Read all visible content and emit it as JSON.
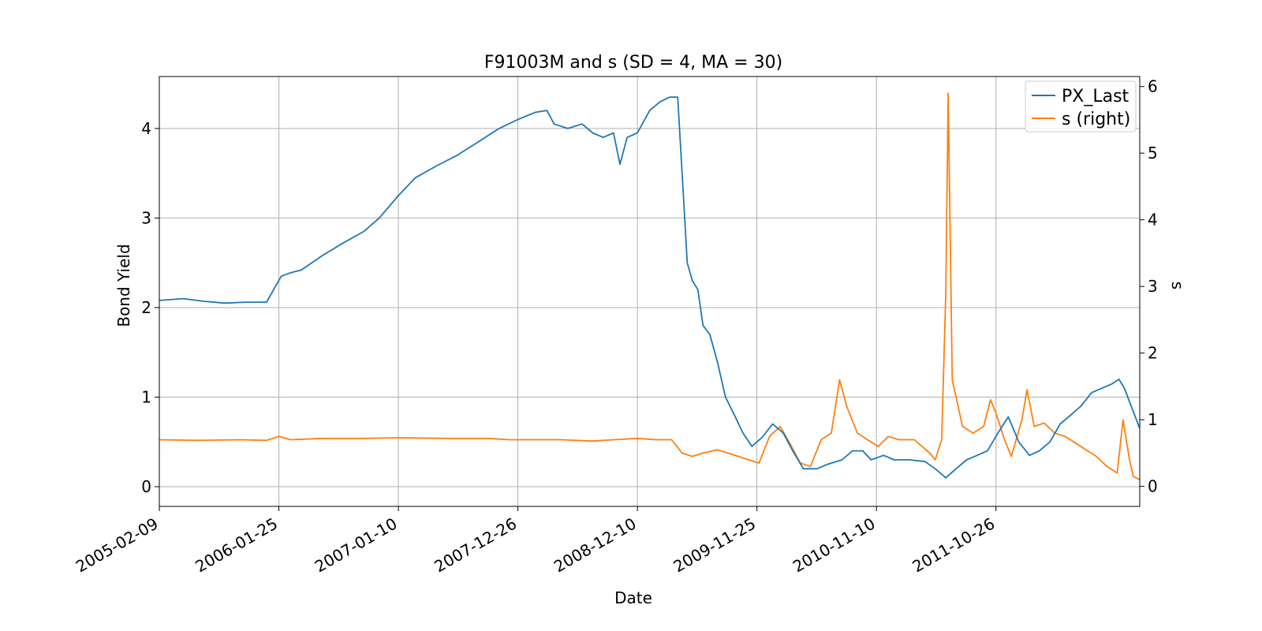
{
  "chart_data": {
    "type": "line",
    "title": "F91003M and s (SD = 4, MA = 30)",
    "xlabel": "Date",
    "ylabel_left": "Bond Yield",
    "ylabel_right": "s",
    "x_ticks": [
      "2005-02-09",
      "2006-01-25",
      "2007-01-10",
      "2007-12-26",
      "2008-12-10",
      "2009-11-25",
      "2010-11-10",
      "2011-10-26"
    ],
    "xlim": [
      "2005-02-09",
      "2012-12-20"
    ],
    "ylim_left": [
      -0.22,
      4.58
    ],
    "ylim_right": [
      -0.3,
      6.15
    ],
    "y_ticks_left": [
      0,
      1,
      2,
      3,
      4
    ],
    "y_ticks_right": [
      0,
      1,
      2,
      3,
      4,
      5,
      6
    ],
    "grid": true,
    "legend_position": "top-right",
    "series": [
      {
        "name": "PX_Last",
        "axis": "left",
        "color": "#1f77b4",
        "points": [
          [
            "2005-02-09",
            2.08
          ],
          [
            "2005-04-20",
            2.1
          ],
          [
            "2005-06-20",
            2.07
          ],
          [
            "2005-08-20",
            2.05
          ],
          [
            "2005-10-20",
            2.06
          ],
          [
            "2005-12-20",
            2.06
          ],
          [
            "2006-01-10",
            2.2
          ],
          [
            "2006-02-01",
            2.35
          ],
          [
            "2006-03-01",
            2.39
          ],
          [
            "2006-04-01",
            2.42
          ],
          [
            "2006-06-01",
            2.58
          ],
          [
            "2006-08-01",
            2.72
          ],
          [
            "2006-10-01",
            2.85
          ],
          [
            "2006-11-15",
            3.0
          ],
          [
            "2007-01-10",
            3.25
          ],
          [
            "2007-03-01",
            3.45
          ],
          [
            "2007-05-01",
            3.58
          ],
          [
            "2007-07-01",
            3.7
          ],
          [
            "2007-09-01",
            3.85
          ],
          [
            "2007-11-01",
            4.0
          ],
          [
            "2007-12-26",
            4.1
          ],
          [
            "2008-02-15",
            4.18
          ],
          [
            "2008-03-20",
            4.2
          ],
          [
            "2008-04-10",
            4.05
          ],
          [
            "2008-05-20",
            4.0
          ],
          [
            "2008-07-01",
            4.05
          ],
          [
            "2008-08-01",
            3.95
          ],
          [
            "2008-09-01",
            3.9
          ],
          [
            "2008-10-01",
            3.95
          ],
          [
            "2008-10-20",
            3.6
          ],
          [
            "2008-11-10",
            3.9
          ],
          [
            "2008-12-10",
            3.95
          ],
          [
            "2009-01-15",
            4.2
          ],
          [
            "2009-02-15",
            4.3
          ],
          [
            "2009-03-15",
            4.35
          ],
          [
            "2009-04-07",
            4.35
          ],
          [
            "2009-04-20",
            3.5
          ],
          [
            "2009-05-05",
            2.5
          ],
          [
            "2009-05-20",
            2.3
          ],
          [
            "2009-06-05",
            2.2
          ],
          [
            "2009-06-20",
            1.8
          ],
          [
            "2009-07-10",
            1.7
          ],
          [
            "2009-08-01",
            1.4
          ],
          [
            "2009-08-25",
            1.0
          ],
          [
            "2009-09-20",
            0.8
          ],
          [
            "2009-10-15",
            0.6
          ],
          [
            "2009-11-10",
            0.45
          ],
          [
            "2009-12-10",
            0.55
          ],
          [
            "2010-01-10",
            0.7
          ],
          [
            "2010-02-10",
            0.6
          ],
          [
            "2010-03-10",
            0.4
          ],
          [
            "2010-04-10",
            0.2
          ],
          [
            "2010-05-20",
            0.2
          ],
          [
            "2010-06-20",
            0.25
          ],
          [
            "2010-08-01",
            0.3
          ],
          [
            "2010-09-01",
            0.4
          ],
          [
            "2010-10-01",
            0.4
          ],
          [
            "2010-10-25",
            0.3
          ],
          [
            "2010-12-01",
            0.35
          ],
          [
            "2011-01-01",
            0.3
          ],
          [
            "2011-02-15",
            0.3
          ],
          [
            "2011-04-01",
            0.28
          ],
          [
            "2011-05-01",
            0.2
          ],
          [
            "2011-06-01",
            0.1
          ],
          [
            "2011-07-01",
            0.2
          ],
          [
            "2011-08-01",
            0.3
          ],
          [
            "2011-09-01",
            0.35
          ],
          [
            "2011-10-01",
            0.4
          ],
          [
            "2011-11-01",
            0.6
          ],
          [
            "2011-12-01",
            0.78
          ],
          [
            "2012-01-01",
            0.5
          ],
          [
            "2012-02-01",
            0.35
          ],
          [
            "2012-03-01",
            0.4
          ],
          [
            "2012-04-01",
            0.5
          ],
          [
            "2012-05-01",
            0.7
          ],
          [
            "2012-06-01",
            0.8
          ],
          [
            "2012-07-01",
            0.9
          ],
          [
            "2012-08-01",
            1.05
          ],
          [
            "2012-09-01",
            1.1
          ],
          [
            "2012-10-01",
            1.15
          ],
          [
            "2012-10-20",
            1.2
          ],
          [
            "2012-11-05",
            1.1
          ],
          [
            "2012-11-20",
            0.95
          ],
          [
            "2012-12-20",
            0.65
          ]
        ]
      },
      {
        "name": "s (right)",
        "axis": "right",
        "color": "#ff7f0e",
        "points": [
          [
            "2005-02-09",
            0.7
          ],
          [
            "2005-06-01",
            0.69
          ],
          [
            "2005-10-01",
            0.7
          ],
          [
            "2005-12-20",
            0.69
          ],
          [
            "2006-01-25",
            0.75
          ],
          [
            "2006-03-01",
            0.7
          ],
          [
            "2006-06-01",
            0.72
          ],
          [
            "2006-10-01",
            0.72
          ],
          [
            "2007-01-10",
            0.73
          ],
          [
            "2007-06-01",
            0.72
          ],
          [
            "2007-10-01",
            0.72
          ],
          [
            "2007-12-01",
            0.7
          ],
          [
            "2008-02-01",
            0.7
          ],
          [
            "2008-05-01",
            0.7
          ],
          [
            "2008-08-01",
            0.68
          ],
          [
            "2008-10-01",
            0.7
          ],
          [
            "2008-12-10",
            0.72
          ],
          [
            "2009-02-01",
            0.7
          ],
          [
            "2009-03-20",
            0.7
          ],
          [
            "2009-04-20",
            0.5
          ],
          [
            "2009-05-20",
            0.45
          ],
          [
            "2009-06-20",
            0.5
          ],
          [
            "2009-08-01",
            0.55
          ],
          [
            "2009-09-01",
            0.5
          ],
          [
            "2009-10-01",
            0.45
          ],
          [
            "2009-11-01",
            0.4
          ],
          [
            "2009-12-01",
            0.35
          ],
          [
            "2010-01-01",
            0.75
          ],
          [
            "2010-02-01",
            0.9
          ],
          [
            "2010-03-01",
            0.65
          ],
          [
            "2010-04-01",
            0.35
          ],
          [
            "2010-05-01",
            0.3
          ],
          [
            "2010-06-01",
            0.7
          ],
          [
            "2010-07-01",
            0.8
          ],
          [
            "2010-07-25",
            1.6
          ],
          [
            "2010-08-15",
            1.2
          ],
          [
            "2010-09-15",
            0.8
          ],
          [
            "2010-10-15",
            0.7
          ],
          [
            "2010-11-15",
            0.6
          ],
          [
            "2010-12-15",
            0.75
          ],
          [
            "2011-01-15",
            0.7
          ],
          [
            "2011-03-01",
            0.7
          ],
          [
            "2011-04-15",
            0.5
          ],
          [
            "2011-05-01",
            0.4
          ],
          [
            "2011-05-20",
            0.7
          ],
          [
            "2011-06-01",
            2.9
          ],
          [
            "2011-06-08",
            5.9
          ],
          [
            "2011-06-20",
            1.6
          ],
          [
            "2011-07-20",
            0.9
          ],
          [
            "2011-08-20",
            0.8
          ],
          [
            "2011-09-20",
            0.9
          ],
          [
            "2011-10-10",
            1.3
          ],
          [
            "2011-10-26",
            1.1
          ],
          [
            "2011-11-20",
            0.7
          ],
          [
            "2011-12-10",
            0.45
          ],
          [
            "2012-01-10",
            1.0
          ],
          [
            "2012-01-25",
            1.45
          ],
          [
            "2012-02-15",
            0.9
          ],
          [
            "2012-03-15",
            0.95
          ],
          [
            "2012-04-15",
            0.8
          ],
          [
            "2012-05-15",
            0.75
          ],
          [
            "2012-06-15",
            0.65
          ],
          [
            "2012-07-15",
            0.55
          ],
          [
            "2012-08-15",
            0.45
          ],
          [
            "2012-09-15",
            0.3
          ],
          [
            "2012-10-15",
            0.2
          ],
          [
            "2012-11-01",
            1.0
          ],
          [
            "2012-11-20",
            0.4
          ],
          [
            "2012-12-01",
            0.15
          ],
          [
            "2012-12-20",
            0.1
          ]
        ]
      }
    ]
  }
}
